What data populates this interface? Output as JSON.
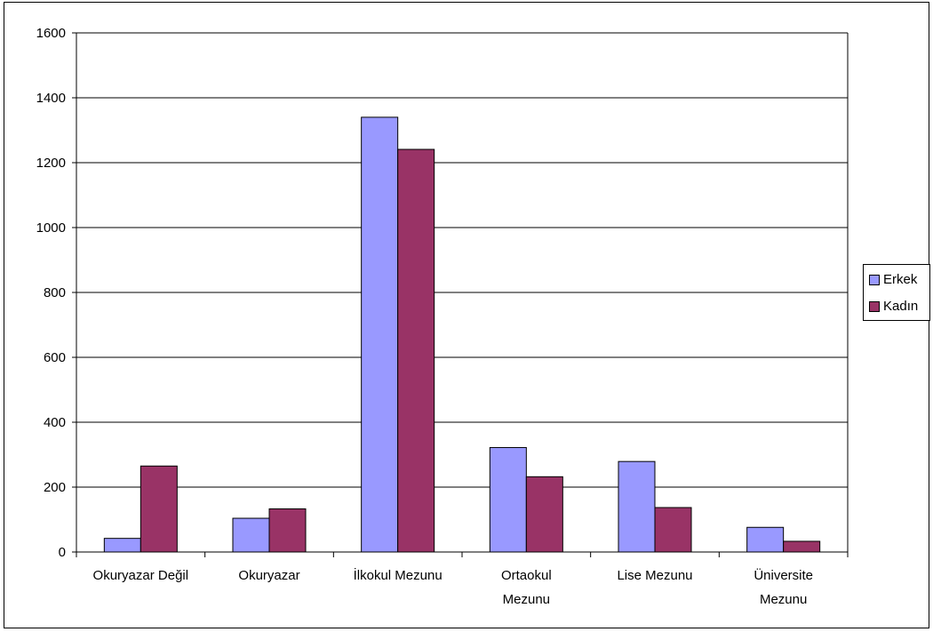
{
  "chart_data": {
    "type": "bar",
    "categories": [
      [
        "Okuryazar Değil"
      ],
      [
        "Okuryazar"
      ],
      [
        "İlkokul Mezunu"
      ],
      [
        "Ortaokul",
        "Mezunu"
      ],
      [
        "Lise Mezunu"
      ],
      [
        "Üniversite",
        "Mezunu"
      ]
    ],
    "series": [
      {
        "name": "Erkek",
        "color": "#9999ff",
        "values": [
          42,
          104,
          1340,
          322,
          279,
          76
        ]
      },
      {
        "name": "Kadın",
        "color": "#993366",
        "values": [
          265,
          133,
          1241,
          232,
          137,
          33
        ]
      }
    ],
    "ylim": [
      0,
      1600
    ],
    "yticks": [
      0,
      200,
      400,
      600,
      800,
      1000,
      1200,
      1400,
      1600
    ],
    "grid": true,
    "legend": "right",
    "title": "",
    "xlabel": "",
    "ylabel": ""
  }
}
